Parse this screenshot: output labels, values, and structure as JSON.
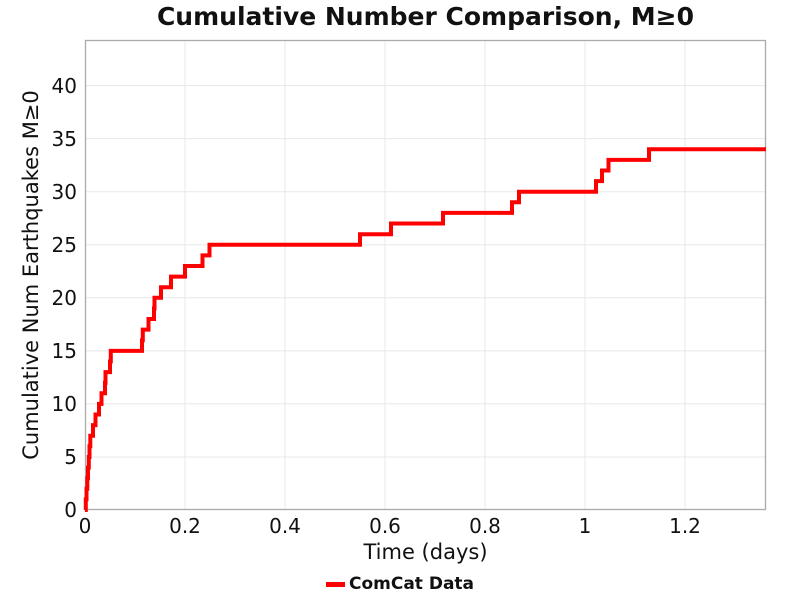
{
  "figure": {
    "background": "#ffffff"
  },
  "colors": {
    "line": "#ff0000",
    "frame": "#aaaaaa",
    "grid": "#e8e8e8",
    "text": "#111111"
  },
  "chart_data": {
    "type": "line",
    "step_mode": "post",
    "title": "Cumulative Number Comparison, M≥0",
    "xlabel": "Time (days)",
    "ylabel": "Cumulative Num Earthquakes M≥0",
    "xlim": [
      0,
      1.362
    ],
    "ylim": [
      0,
      44.3
    ],
    "grid": true,
    "xticks": {
      "values": [
        0,
        0.2,
        0.4,
        0.6,
        0.8,
        1.0,
        1.2
      ],
      "labels": [
        "0",
        "0.2",
        "0.4",
        "0.6",
        "0.8",
        "1",
        "1.2"
      ]
    },
    "yticks": {
      "values": [
        0,
        5,
        10,
        15,
        20,
        25,
        30,
        35,
        40
      ],
      "labels": [
        "0",
        "5",
        "10",
        "15",
        "20",
        "25",
        "30",
        "35",
        "40"
      ]
    },
    "legend": {
      "position": "bottom-center",
      "entries": [
        {
          "label": "ComCat Data",
          "color": "#ff0000"
        }
      ]
    },
    "series": [
      {
        "name": "ComCat Data",
        "color": "#ff0000",
        "line_width": 4,
        "start_point": [
          0,
          0
        ],
        "extend_to_xmax": true,
        "x": [
          0.0015,
          0.003,
          0.0045,
          0.006,
          0.0075,
          0.009,
          0.0105,
          0.016,
          0.021,
          0.028,
          0.033,
          0.04,
          0.041,
          0.05,
          0.0515,
          0.114,
          0.1155,
          0.127,
          0.138,
          0.139,
          0.152,
          0.172,
          0.2,
          0.235,
          0.249,
          0.55,
          0.612,
          0.716,
          0.854,
          0.868,
          1.022,
          1.034,
          1.047,
          1.128
        ],
        "y": [
          1,
          2,
          3,
          4,
          5,
          6,
          7,
          8,
          9,
          10,
          11,
          12,
          13,
          14,
          15,
          16,
          17,
          18,
          19,
          20,
          21,
          22,
          23,
          24,
          25,
          26,
          27,
          28,
          29,
          30,
          31,
          32,
          33,
          34
        ]
      }
    ]
  }
}
